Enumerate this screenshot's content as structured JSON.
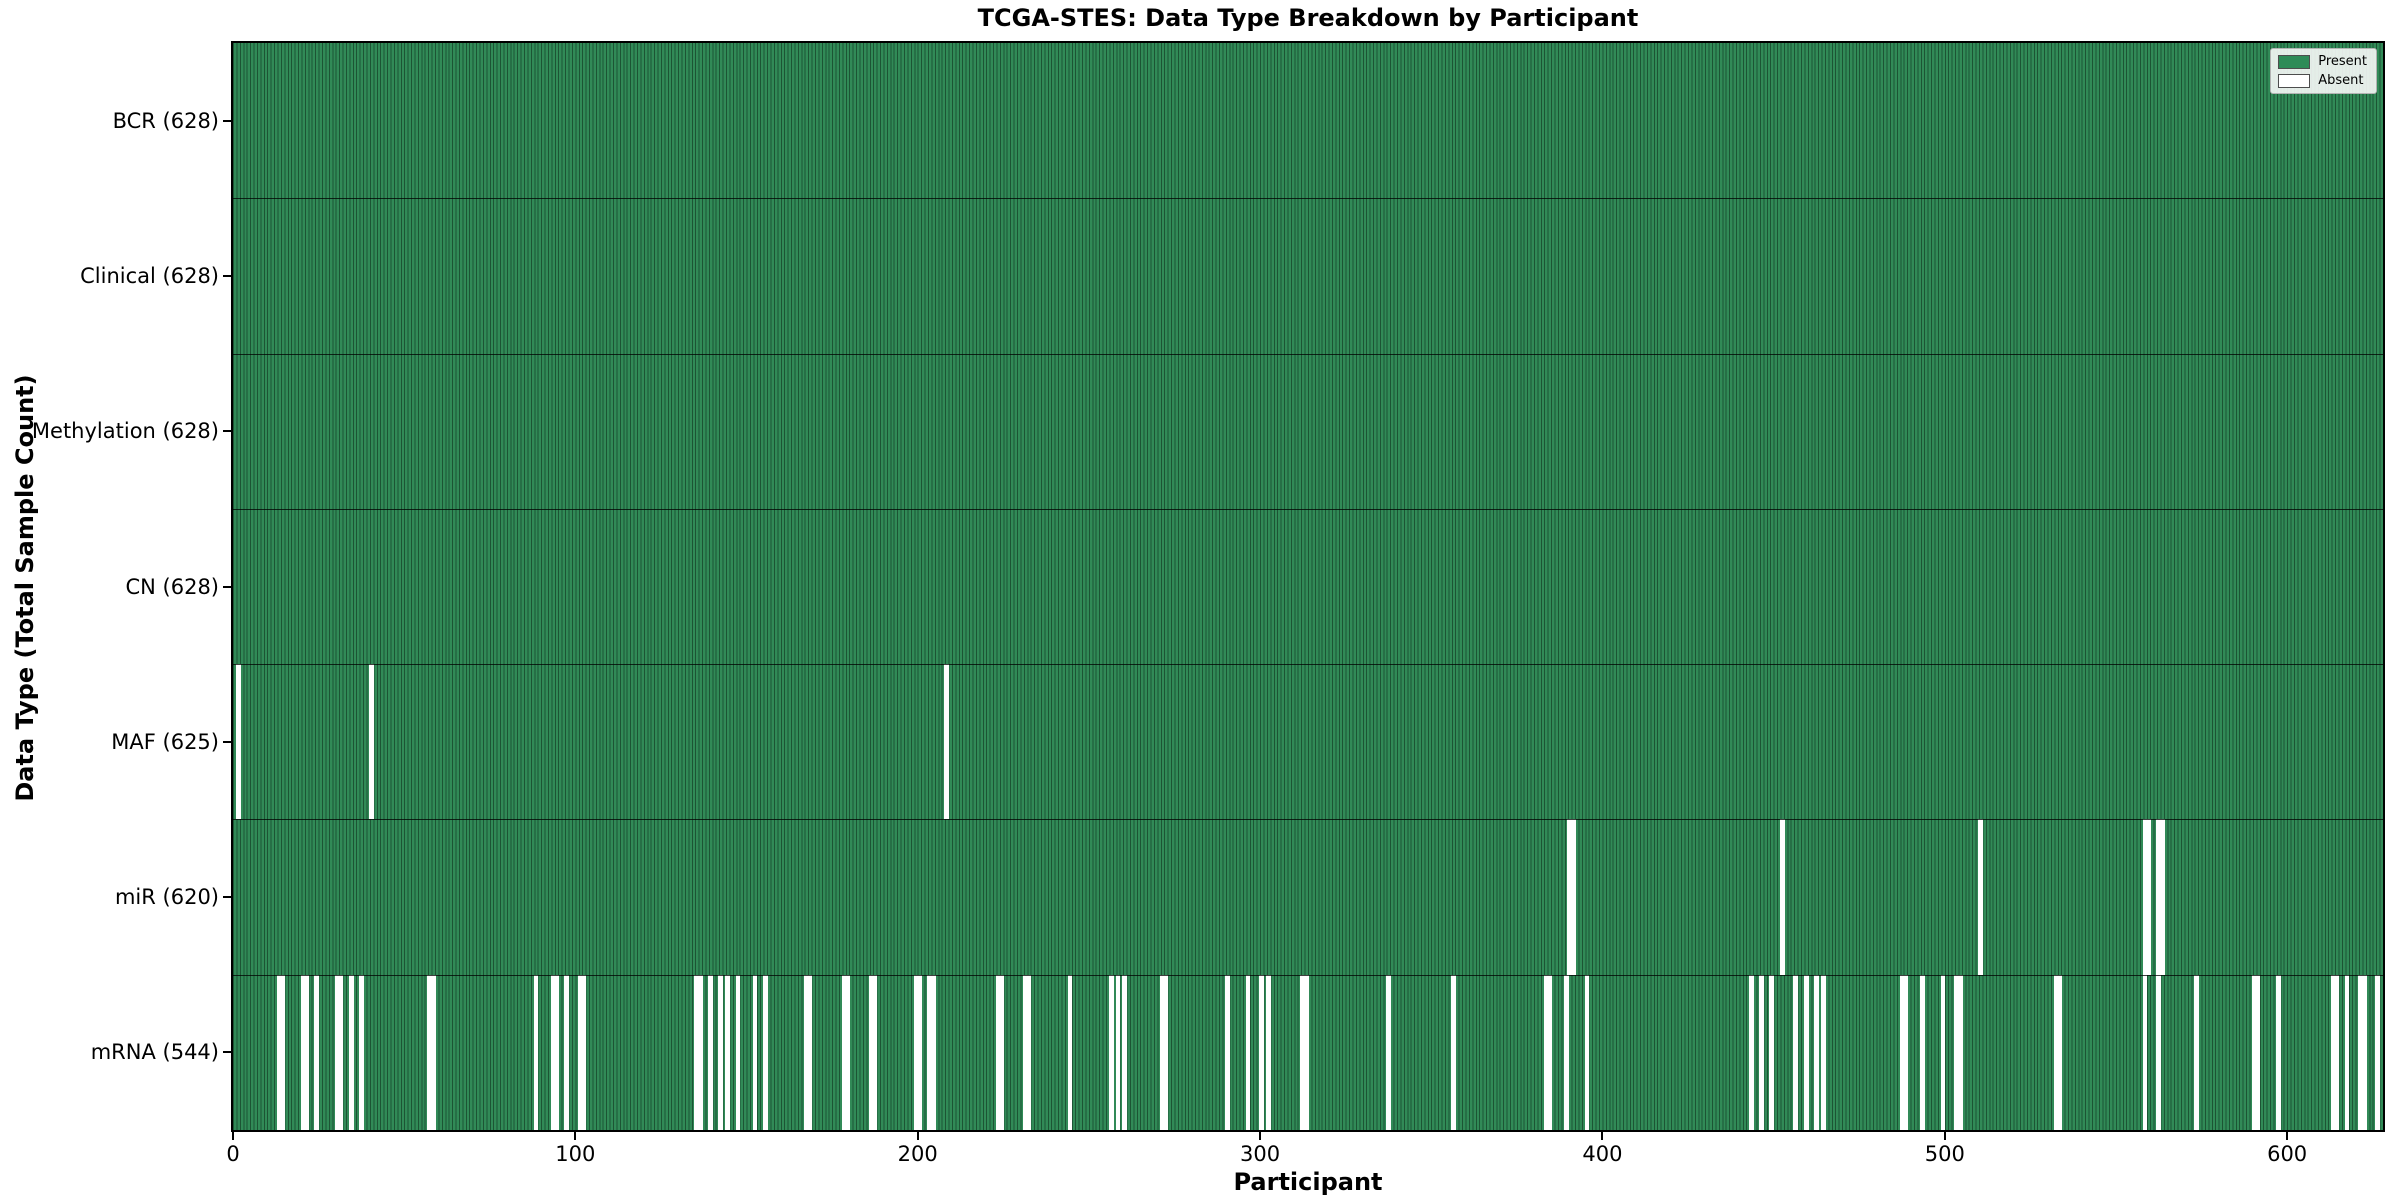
{
  "chart_data": {
    "type": "heatmap",
    "title": "TCGA-STES: Data Type Breakdown by Participant",
    "xlabel": "Participant",
    "ylabel": "Data Type (Total Sample Count)",
    "x_ticks": [
      0,
      100,
      200,
      300,
      400,
      500,
      600
    ],
    "x_range": [
      0,
      628
    ],
    "n_participants": 628,
    "grid": false,
    "legend_position": "upper right",
    "legend": [
      {
        "label": "Present",
        "color": "#2e8b57"
      },
      {
        "label": "Absent",
        "color": "#ffffff"
      }
    ],
    "colors": {
      "present": "#318a57",
      "absent": "#ffffff",
      "bar_edge": "#1c5434",
      "row_separator": "#000000"
    },
    "rows": [
      {
        "label": "BCR (628)",
        "data_type": "BCR",
        "count": 628,
        "absent_participants": []
      },
      {
        "label": "Clinical (628)",
        "data_type": "Clinical",
        "count": 628,
        "absent_participants": []
      },
      {
        "label": "Methylation (628)",
        "data_type": "Methylation",
        "count": 628,
        "absent_participants": []
      },
      {
        "label": "CN (628)",
        "data_type": "CN",
        "count": 628,
        "absent_participants": []
      },
      {
        "label": "MAF (625)",
        "data_type": "MAF",
        "count": 625,
        "absent_participants": [
          1,
          40,
          208
        ]
      },
      {
        "label": "miR (620)",
        "data_type": "miR",
        "count": 620,
        "absent_participants": [
          390,
          391,
          452,
          510,
          558,
          559,
          562,
          563
        ]
      },
      {
        "label": "mRNA (544)",
        "data_type": "mRNA",
        "count": 544,
        "absent_participants": [
          13,
          14,
          20,
          21,
          24,
          30,
          31,
          34,
          37,
          57,
          58,
          88,
          93,
          94,
          97,
          101,
          102,
          135,
          136,
          139,
          142,
          144,
          147,
          152,
          155,
          167,
          168,
          178,
          179,
          186,
          187,
          199,
          200,
          203,
          204,
          223,
          224,
          231,
          232,
          244,
          256,
          258,
          260,
          271,
          272,
          290,
          296,
          300,
          302,
          312,
          313,
          337,
          356,
          383,
          384,
          389,
          395,
          443,
          446,
          449,
          456,
          459,
          462,
          464,
          487,
          488,
          493,
          499,
          503,
          504,
          532,
          533,
          558,
          562,
          573,
          590,
          591,
          597,
          613,
          614,
          617,
          621,
          622,
          626
        ]
      }
    ]
  }
}
